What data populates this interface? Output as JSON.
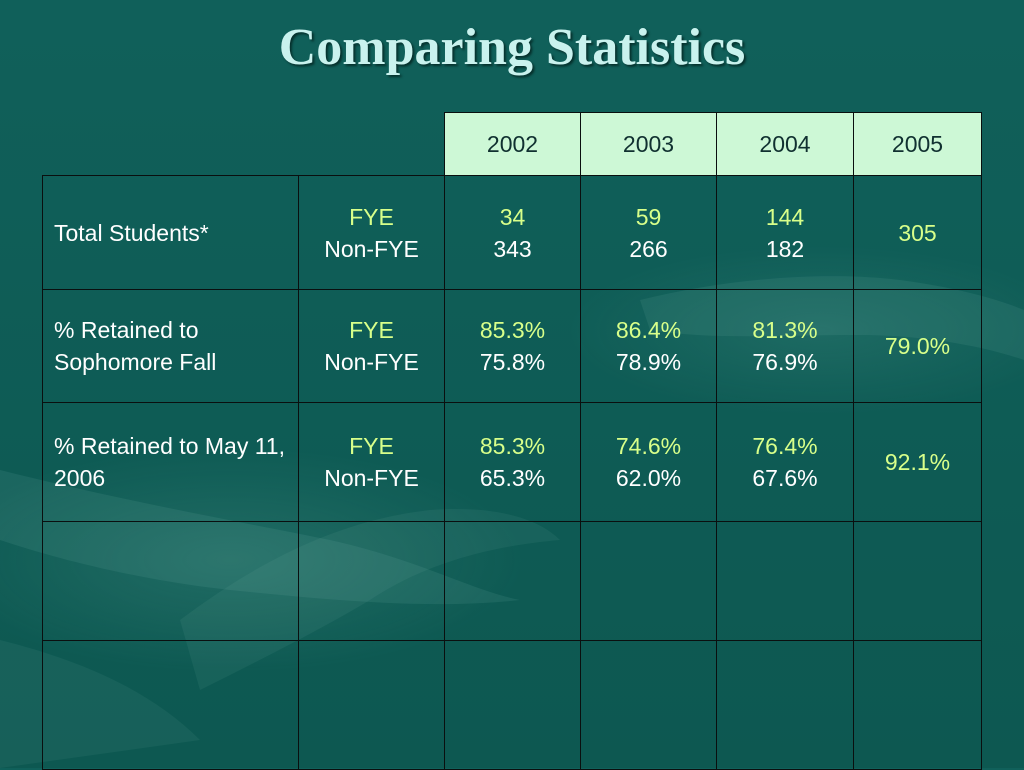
{
  "slide": {
    "title": "Comparing Statistics"
  },
  "table": {
    "years": [
      "2002",
      "2003",
      "2004",
      "2005"
    ],
    "rows": [
      {
        "label": "Total Students*",
        "group_a": "FYE",
        "group_b": "Non-FYE",
        "values": [
          {
            "a": "34",
            "b": "343"
          },
          {
            "a": "59",
            "b": "266"
          },
          {
            "a": "144",
            "b": "182"
          }
        ],
        "single": "305"
      },
      {
        "label": "% Retained to Sophomore Fall",
        "group_a": "FYE",
        "group_b": "Non-FYE",
        "values": [
          {
            "a": "85.3%",
            "b": "75.8%"
          },
          {
            "a": "86.4%",
            "b": "78.9%"
          },
          {
            "a": "81.3%",
            "b": "76.9%"
          }
        ],
        "single": "79.0%"
      },
      {
        "label": "% Retained to May 11, 2006",
        "group_a": "FYE",
        "group_b": "Non-FYE",
        "values": [
          {
            "a": "85.3%",
            "b": "65.3%"
          },
          {
            "a": "74.6%",
            "b": "62.0%"
          },
          {
            "a": "76.4%",
            "b": "67.6%"
          }
        ],
        "single": "92.1%"
      }
    ]
  },
  "colors": {
    "background": "#0f5e57",
    "title": "#c9f2ee",
    "header_fill": "#cdf8d6",
    "fye_text": "#d8ff8a",
    "body_text": "#ffffff"
  }
}
